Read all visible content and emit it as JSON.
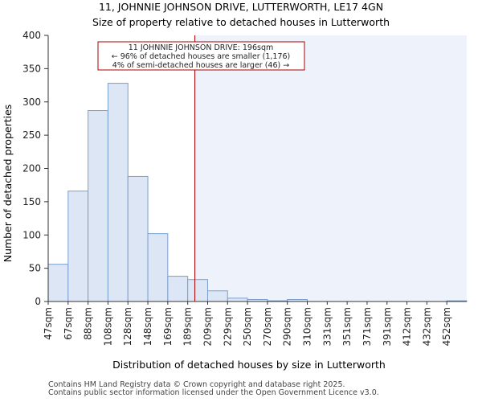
{
  "chart_data": {
    "type": "bar",
    "title": "11, JOHNNIE JOHNSON DRIVE, LUTTERWORTH, LE17 4GN",
    "subtitle": "Size of property relative to detached houses in Lutterworth",
    "xlabel": "Distribution of detached houses by size in Lutterworth",
    "ylabel": "Number of detached properties",
    "categories": [
      "47sqm",
      "67sqm",
      "88sqm",
      "108sqm",
      "128sqm",
      "148sqm",
      "169sqm",
      "189sqm",
      "209sqm",
      "229sqm",
      "250sqm",
      "270sqm",
      "290sqm",
      "310sqm",
      "331sqm",
      "351sqm",
      "371sqm",
      "391sqm",
      "412sqm",
      "432sqm",
      "452sqm"
    ],
    "values": [
      56,
      166,
      287,
      328,
      188,
      102,
      38,
      33,
      16,
      5,
      3,
      1,
      3,
      0,
      0,
      0,
      0,
      0,
      0,
      0,
      1
    ],
    "ylim": [
      0,
      400
    ],
    "yticks": [
      0,
      50,
      100,
      150,
      200,
      250,
      300,
      350,
      400
    ],
    "bar_fill": "#dce6f5",
    "bar_stroke": "#7a9fd0",
    "shade_fill": "#eef2fb",
    "marker_color": "#aa0000",
    "marker_value_sqm": 196,
    "annotation": {
      "line1": "11 JOHNNIE JOHNSON DRIVE: 196sqm",
      "line2": "← 96% of detached houses are smaller (1,176)",
      "line3": "4% of semi-detached houses are larger (46) →"
    }
  },
  "footer": {
    "line1": "Contains HM Land Registry data © Crown copyright and database right 2025.",
    "line2": "Contains public sector information licensed under the Open Government Licence v3.0."
  }
}
